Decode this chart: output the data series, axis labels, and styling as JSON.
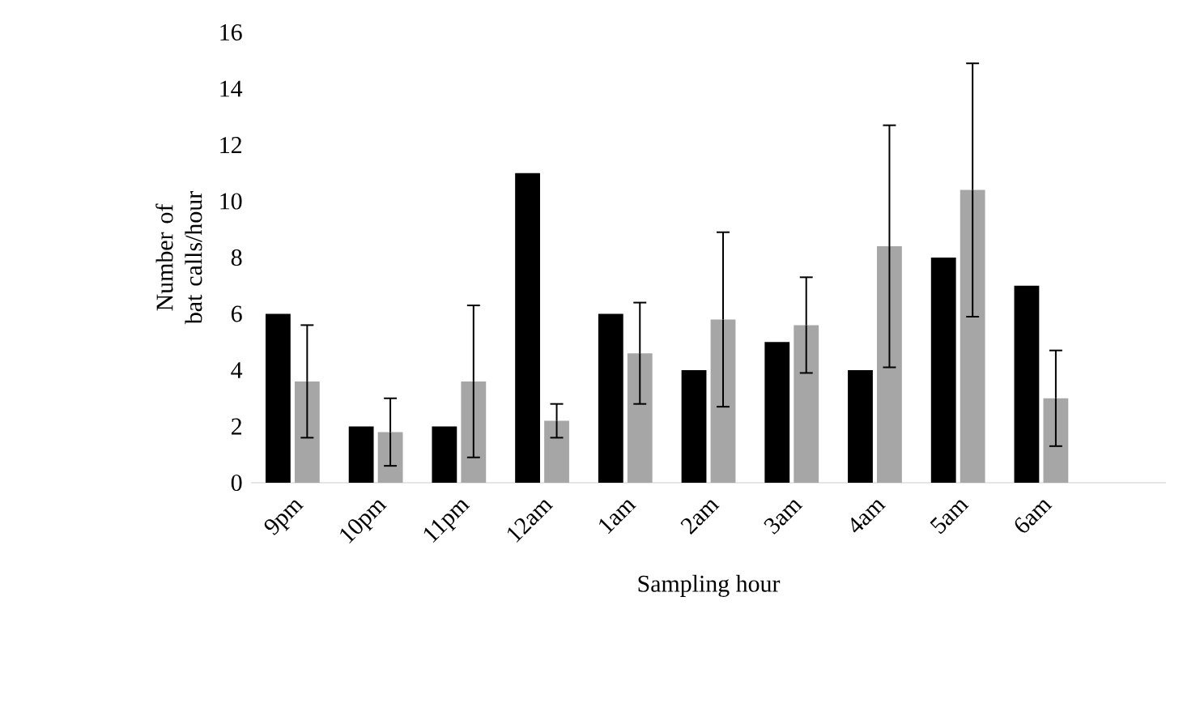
{
  "chart_data": {
    "type": "bar",
    "xlabel": "Sampling hour",
    "ylabel": "Number of bat calls/hour",
    "categories": [
      "9pm",
      "10pm",
      "11pm",
      "12am",
      "1am",
      "2am",
      "3am",
      "4am",
      "5am",
      "6am",
      null
    ],
    "series": [
      {
        "color": "#000000",
        "values": [
          6,
          2,
          2,
          11,
          6,
          4,
          5,
          4,
          8,
          7,
          null
        ]
      },
      {
        "color": "#a6a6a6",
        "values": [
          3.6,
          1.8,
          3.6,
          2.2,
          4.6,
          5.8,
          5.6,
          8.4,
          10.4,
          3.0,
          null
        ],
        "errors": [
          2.0,
          1.2,
          2.7,
          0.6,
          1.8,
          3.1,
          1.7,
          4.3,
          4.5,
          1.7,
          null
        ]
      }
    ],
    "ylim": [
      0,
      16
    ],
    "yticks": [
      0,
      2,
      4,
      6,
      8,
      10,
      12,
      14,
      16
    ],
    "grid": false
  }
}
